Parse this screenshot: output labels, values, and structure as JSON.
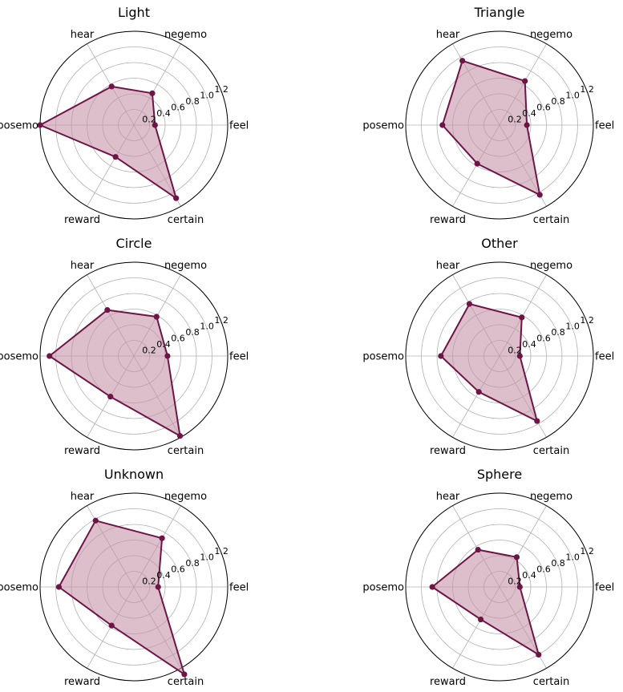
{
  "chart_data": [
    {
      "type": "radar",
      "title": "Light",
      "categories": [
        "feel",
        "negemo",
        "hear",
        "posemo",
        "reward",
        "certain"
      ],
      "series": [
        {
          "values": [
            0.27,
            0.47,
            0.57,
            1.2,
            0.47,
            1.08
          ]
        }
      ],
      "rlim": [
        0,
        1.2
      ],
      "rticks": [
        "0.2",
        "0.4",
        "0.6",
        "0.8",
        "1.0",
        "1.2"
      ],
      "color": "#6e1446",
      "fill_color": "#c792a9"
    },
    {
      "type": "radar",
      "title": "Triangle",
      "categories": [
        "feel",
        "negemo",
        "hear",
        "posemo",
        "reward",
        "certain"
      ],
      "series": [
        {
          "values": [
            0.35,
            0.65,
            0.95,
            0.73,
            0.57,
            1.03
          ]
        }
      ],
      "rlim": [
        0,
        1.2
      ],
      "rticks": [
        "0.2",
        "0.4",
        "0.6",
        "0.8",
        "1.0",
        "1.2"
      ],
      "color": "#6e1446",
      "fill_color": "#c792a9"
    },
    {
      "type": "radar",
      "title": "Circle",
      "categories": [
        "feel",
        "negemo",
        "hear",
        "posemo",
        "reward",
        "certain"
      ],
      "series": [
        {
          "values": [
            0.43,
            0.58,
            0.68,
            1.08,
            0.6,
            1.18
          ]
        }
      ],
      "rlim": [
        0,
        1.2
      ],
      "rticks": [
        "0.2",
        "0.4",
        "0.6",
        "0.8",
        "1.0",
        "1.2"
      ],
      "color": "#6e1446",
      "fill_color": "#c792a9"
    },
    {
      "type": "radar",
      "title": "Other",
      "categories": [
        "feel",
        "negemo",
        "hear",
        "posemo",
        "reward",
        "certain"
      ],
      "series": [
        {
          "values": [
            0.26,
            0.57,
            0.77,
            0.75,
            0.53,
            0.96
          ]
        }
      ],
      "rlim": [
        0,
        1.2
      ],
      "rticks": [
        "0.2",
        "0.4",
        "0.6",
        "0.8",
        "1.0",
        "1.2"
      ],
      "color": "#6e1446",
      "fill_color": "#c792a9"
    },
    {
      "type": "radar",
      "title": "Unknown",
      "categories": [
        "feel",
        "negemo",
        "hear",
        "posemo",
        "reward",
        "certain"
      ],
      "series": [
        {
          "values": [
            0.31,
            0.72,
            0.98,
            0.96,
            0.57,
            1.29
          ]
        }
      ],
      "rlim": [
        0,
        1.2
      ],
      "rticks": [
        "0.2",
        "0.4",
        "0.6",
        "0.8",
        "1.0",
        "1.2"
      ],
      "color": "#6e1446",
      "fill_color": "#c792a9"
    },
    {
      "type": "radar",
      "title": "Sphere",
      "categories": [
        "feel",
        "negemo",
        "hear",
        "posemo",
        "reward",
        "certain"
      ],
      "series": [
        {
          "values": [
            0.26,
            0.44,
            0.55,
            0.86,
            0.48,
            1.0
          ]
        }
      ],
      "rlim": [
        0,
        1.2
      ],
      "rticks": [
        "0.2",
        "0.4",
        "0.6",
        "0.8",
        "1.0",
        "1.2"
      ],
      "color": "#6e1446",
      "fill_color": "#c792a9"
    }
  ]
}
